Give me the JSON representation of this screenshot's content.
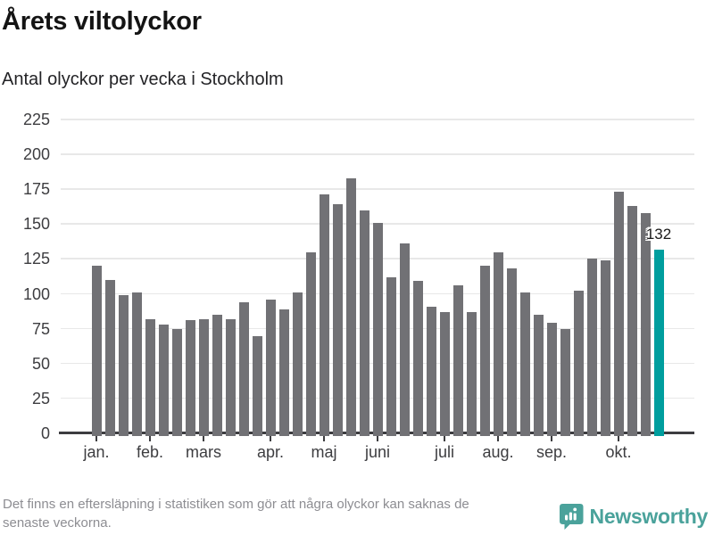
{
  "header": {
    "title": "Årets viltolyckor",
    "subtitle": "Antal olyckor per vecka i Stockholm"
  },
  "chart_data": {
    "type": "bar",
    "title": "Årets viltolyckor",
    "subtitle": "Antal olyckor per vecka i Stockholm",
    "ylim": [
      0,
      225
    ],
    "yticks": [
      0,
      25,
      50,
      75,
      100,
      125,
      150,
      175,
      200,
      225
    ],
    "grid": true,
    "legend": "none",
    "x_tick_labels": [
      "jan.",
      "feb.",
      "mars",
      "apr.",
      "maj",
      "juni",
      "juli",
      "aug.",
      "sep.",
      "okt."
    ],
    "x_tick_week_index": [
      0,
      4,
      8,
      13,
      17,
      21,
      26,
      30,
      34,
      39
    ],
    "weekly_values": [
      120,
      110,
      99,
      101,
      82,
      78,
      75,
      81,
      82,
      85,
      82,
      94,
      70,
      96,
      89,
      101,
      130,
      171,
      164,
      183,
      160,
      151,
      112,
      136,
      109,
      91,
      87,
      106,
      87,
      120,
      130,
      118,
      101,
      85,
      79,
      75,
      102,
      125,
      124,
      173,
      163,
      158,
      132
    ],
    "highlight_index": 42,
    "highlight_label": "132",
    "bar_color": "#717175",
    "highlight_color": "#009e9e",
    "gridline_color": "#e8e8e8",
    "axis_color": "#3d3d40"
  },
  "footer": {
    "note_line1": "Det finns en eftersläpning i statistiken som gör att några olyckor kan saknas de",
    "note_line2": "senaste veckorna.",
    "logo_text": "Newsworthy"
  }
}
